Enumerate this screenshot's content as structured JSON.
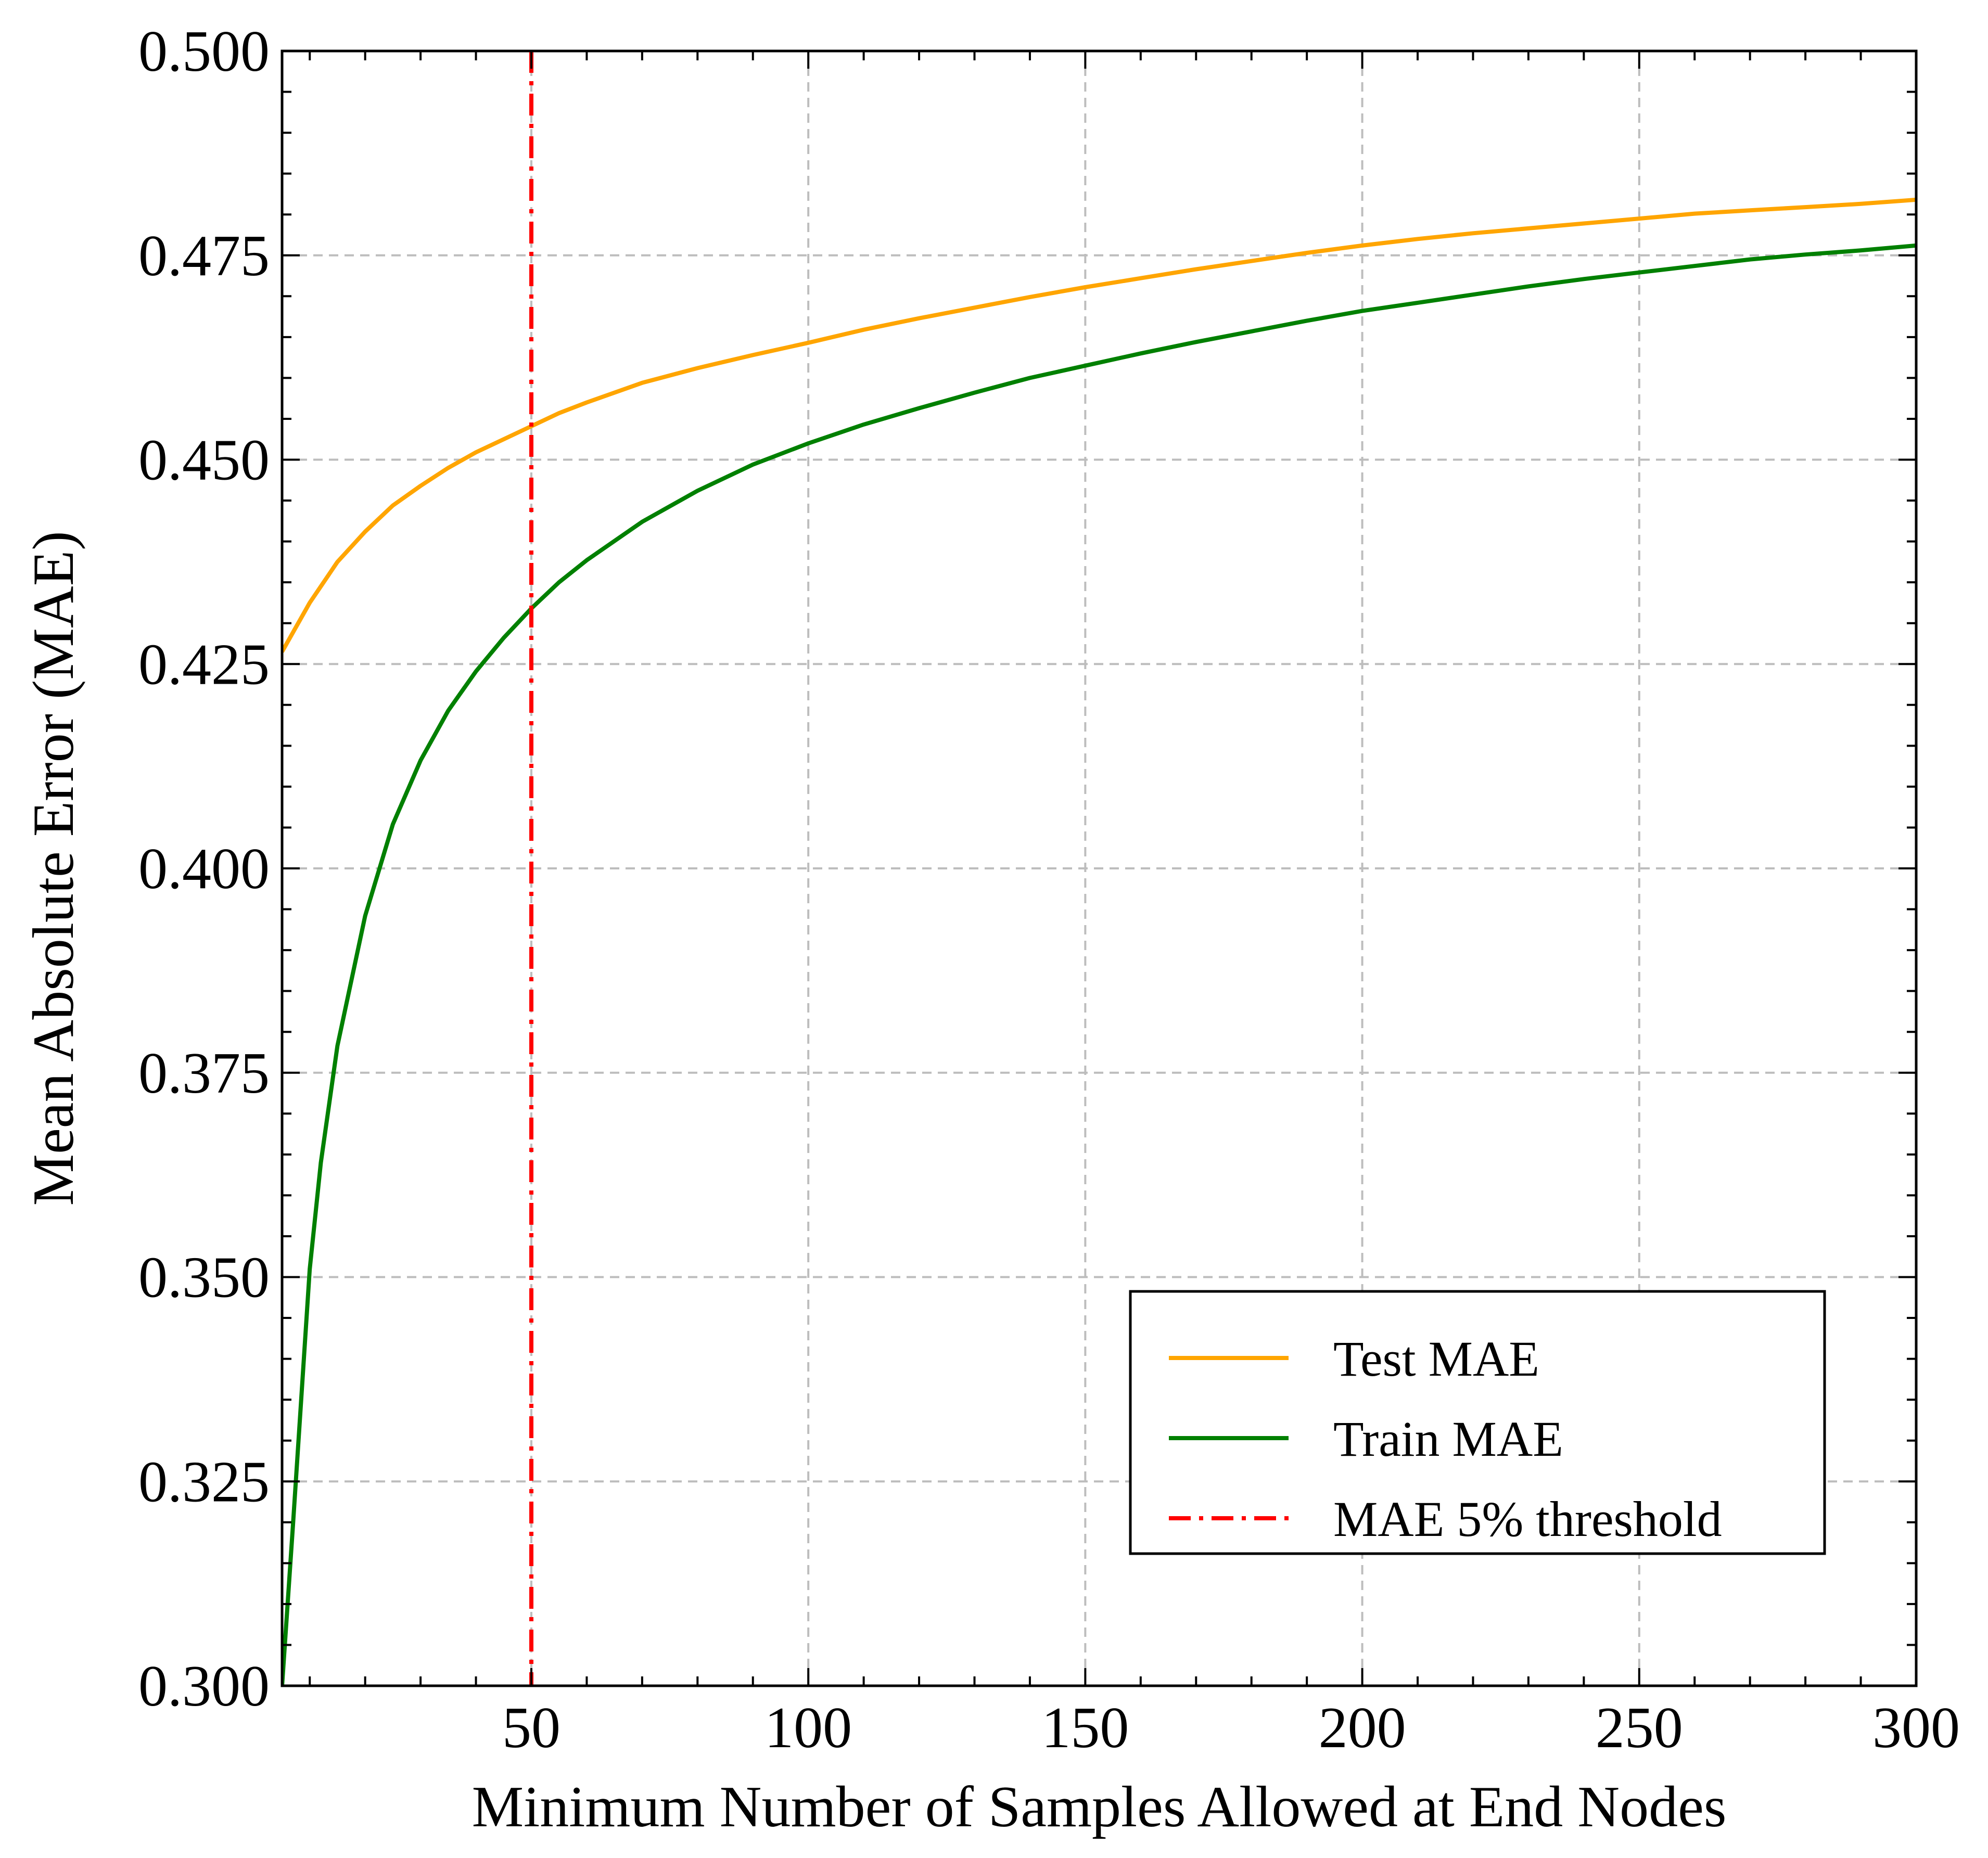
{
  "chart_data": {
    "type": "line",
    "xlabel": "Minimum Number of Samples Allowed at End Nodes",
    "ylabel": "Mean Absolute Error (MAE)",
    "xlim": [
      5,
      300
    ],
    "ylim": [
      0.3,
      0.5
    ],
    "xticks": [
      50,
      100,
      150,
      200,
      250,
      300
    ],
    "xtick_labels": [
      "50",
      "100",
      "150",
      "200",
      "250",
      "300"
    ],
    "yticks": [
      0.3,
      0.325,
      0.35,
      0.375,
      0.4,
      0.425,
      0.45,
      0.475,
      0.5
    ],
    "ytick_labels": [
      "0.300",
      "0.325",
      "0.350",
      "0.375",
      "0.400",
      "0.425",
      "0.450",
      "0.475",
      "0.500"
    ],
    "grid": true,
    "legend_position": "lower right",
    "series": [
      {
        "name": "Test MAE",
        "color": "#ffa500",
        "style": "solid",
        "x": [
          5,
          10,
          15,
          20,
          25,
          30,
          35,
          40,
          45,
          50,
          55,
          60,
          70,
          80,
          90,
          100,
          110,
          120,
          130,
          140,
          150,
          160,
          170,
          180,
          190,
          200,
          210,
          220,
          230,
          240,
          250,
          260,
          270,
          280,
          290,
          300
        ],
        "y": [
          0.4265,
          0.4325,
          0.4375,
          0.4412,
          0.4444,
          0.4468,
          0.449,
          0.4509,
          0.4525,
          0.4541,
          0.4557,
          0.457,
          0.4594,
          0.4612,
          0.4628,
          0.4643,
          0.4659,
          0.4673,
          0.4686,
          0.4699,
          0.4711,
          0.4722,
          0.4733,
          0.4743,
          0.4753,
          0.4762,
          0.477,
          0.4777,
          0.4783,
          0.4789,
          0.4795,
          0.4801,
          0.4805,
          0.4809,
          0.4813,
          0.4818
        ]
      },
      {
        "name": "Train MAE",
        "color": "#008000",
        "style": "solid",
        "x": [
          5,
          7,
          10,
          12,
          15,
          20,
          25,
          30,
          35,
          40,
          45,
          50,
          55,
          60,
          70,
          80,
          90,
          100,
          110,
          120,
          130,
          140,
          150,
          160,
          170,
          180,
          190,
          200,
          210,
          220,
          230,
          240,
          250,
          260,
          270,
          280,
          290,
          300
        ],
        "y": [
          0.3,
          0.32,
          0.351,
          0.364,
          0.3783,
          0.3942,
          0.4054,
          0.4132,
          0.4193,
          0.4241,
          0.4282,
          0.4318,
          0.435,
          0.4377,
          0.4424,
          0.4462,
          0.4494,
          0.452,
          0.4543,
          0.4563,
          0.4582,
          0.46,
          0.4615,
          0.463,
          0.4644,
          0.4657,
          0.467,
          0.4682,
          0.4692,
          0.4702,
          0.4712,
          0.4721,
          0.4729,
          0.4737,
          0.4745,
          0.4751,
          0.4756,
          0.4762
        ]
      },
      {
        "name": "MAE 5% threshold",
        "color": "#ff0000",
        "style": "dashdot",
        "orientation": "vertical",
        "x": 50
      }
    ]
  }
}
